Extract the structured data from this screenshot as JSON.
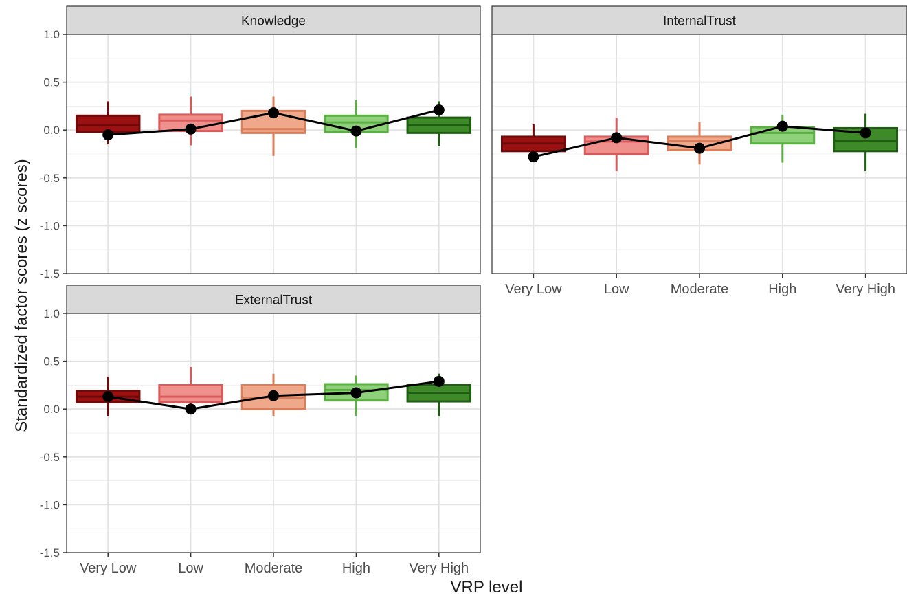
{
  "chart_data": {
    "type": "boxplot",
    "xlabel": "VRP level",
    "ylabel": "Standardized factor scores (z scores)",
    "categories": [
      "Very Low",
      "Low",
      "Moderate",
      "High",
      "Very High"
    ],
    "ylim": [
      -1.5,
      1.0
    ],
    "yticks": [
      {
        "value": 1.0,
        "label": "1.0"
      },
      {
        "value": 0.5,
        "label": "0.5"
      },
      {
        "value": 0.0,
        "label": "0.0"
      },
      {
        "value": -0.5,
        "label": "-0.5"
      },
      {
        "value": -1.0,
        "label": "-1.0"
      },
      {
        "value": -1.5,
        "label": "-1.5"
      }
    ],
    "grid": true,
    "legend": "none",
    "category_colors": {
      "fill": [
        "#9b1111",
        "#f0908c",
        "#efa98a",
        "#8fd07a",
        "#3e8a28"
      ],
      "stroke": [
        "#6e0a0a",
        "#d85a5a",
        "#d97e5a",
        "#5cb043",
        "#1f5e12"
      ]
    },
    "line_color": "#000000",
    "panels": [
      {
        "title": "Knowledge",
        "boxes": [
          {
            "q1": -0.02,
            "median": 0.05,
            "q3": 0.15,
            "whisker_low": -0.15,
            "whisker_high": 0.3
          },
          {
            "q1": -0.01,
            "median": 0.1,
            "q3": 0.16,
            "whisker_low": -0.16,
            "whisker_high": 0.35
          },
          {
            "q1": -0.03,
            "median": 0.01,
            "q3": 0.2,
            "whisker_low": -0.27,
            "whisker_high": 0.35
          },
          {
            "q1": -0.02,
            "median": 0.08,
            "q3": 0.15,
            "whisker_low": -0.19,
            "whisker_high": 0.31
          },
          {
            "q1": -0.03,
            "median": 0.05,
            "q3": 0.13,
            "whisker_low": -0.17,
            "whisker_high": 0.3
          }
        ],
        "means": [
          -0.05,
          0.01,
          0.18,
          -0.01,
          0.21
        ]
      },
      {
        "title": "InternalTrust",
        "boxes": [
          {
            "q1": -0.22,
            "median": -0.14,
            "q3": -0.07,
            "whisker_low": -0.28,
            "whisker_high": 0.06
          },
          {
            "q1": -0.25,
            "median": -0.12,
            "q3": -0.07,
            "whisker_low": -0.43,
            "whisker_high": 0.13
          },
          {
            "q1": -0.21,
            "median": -0.11,
            "q3": -0.07,
            "whisker_low": -0.36,
            "whisker_high": 0.08
          },
          {
            "q1": -0.14,
            "median": -0.03,
            "q3": 0.03,
            "whisker_low": -0.34,
            "whisker_high": 0.16
          },
          {
            "q1": -0.22,
            "median": -0.11,
            "q3": 0.02,
            "whisker_low": -0.43,
            "whisker_high": 0.17
          }
        ],
        "means": [
          -0.28,
          -0.08,
          -0.19,
          0.04,
          -0.03
        ]
      },
      {
        "title": "ExternalTrust",
        "boxes": [
          {
            "q1": 0.07,
            "median": 0.13,
            "q3": 0.19,
            "whisker_low": -0.07,
            "whisker_high": 0.34
          },
          {
            "q1": 0.07,
            "median": 0.13,
            "q3": 0.25,
            "whisker_low": 0.0,
            "whisker_high": 0.44
          },
          {
            "q1": 0.0,
            "median": 0.12,
            "q3": 0.25,
            "whisker_low": -0.07,
            "whisker_high": 0.37
          },
          {
            "q1": 0.09,
            "median": 0.2,
            "q3": 0.26,
            "whisker_low": -0.07,
            "whisker_high": 0.35
          },
          {
            "q1": 0.08,
            "median": 0.17,
            "q3": 0.25,
            "whisker_low": -0.07,
            "whisker_high": 0.37
          }
        ],
        "means": [
          0.13,
          0.0,
          0.14,
          0.17,
          0.29
        ]
      }
    ]
  }
}
